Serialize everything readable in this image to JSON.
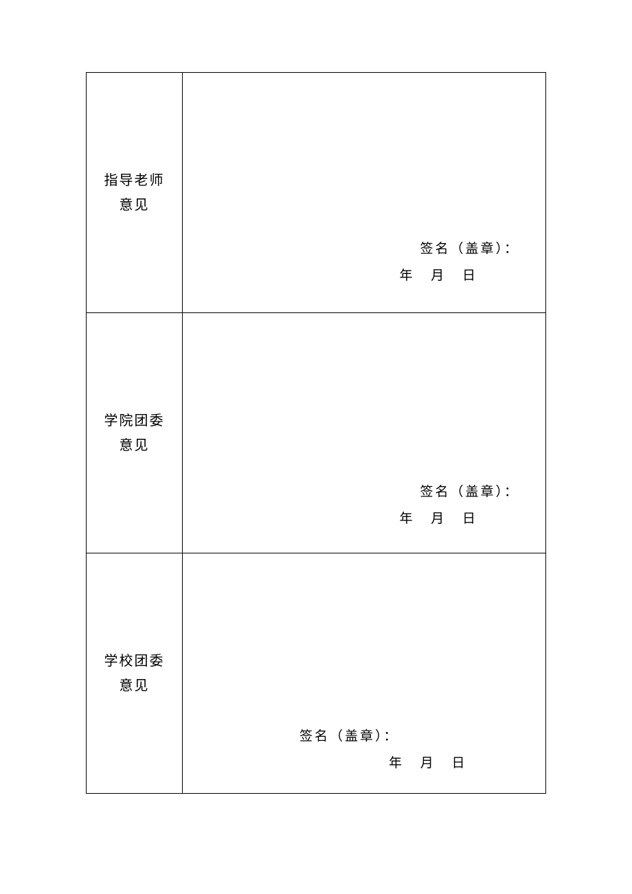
{
  "table": {
    "border_color": "#000000",
    "background_color": "#ffffff",
    "text_color": "#000000",
    "label_fontsize": 20,
    "content_fontsize": 19,
    "rows": [
      {
        "label_line1": "指导老师",
        "label_line2": "意见",
        "signature_label": "签名（盖章）：",
        "date_year": "年",
        "date_month": "月",
        "date_day": "日"
      },
      {
        "label_line1": "学院团委",
        "label_line2": "意见",
        "signature_label": "签名（盖章）：",
        "date_year": "年",
        "date_month": "月",
        "date_day": "日"
      },
      {
        "label_line1": "学校团委",
        "label_line2": "意见",
        "signature_label": "签名（盖章）：",
        "date_year": "年",
        "date_month": "月",
        "date_day": "日"
      }
    ]
  }
}
